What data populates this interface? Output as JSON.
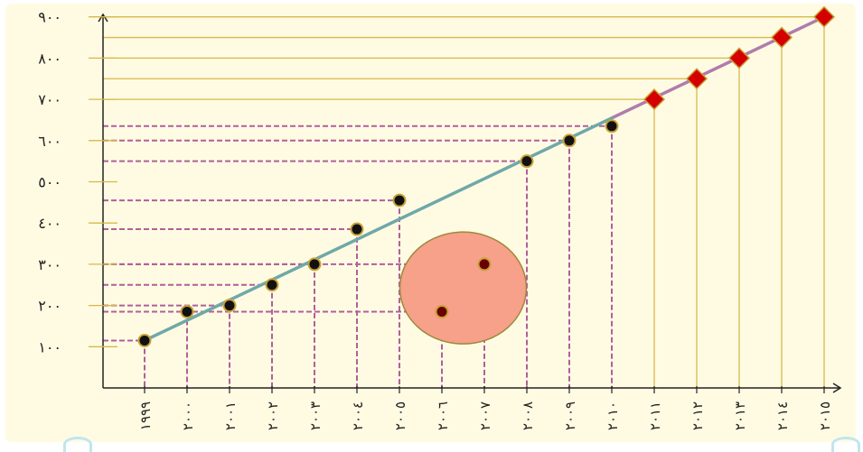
{
  "chart_data": {
    "type": "scatter",
    "title": "",
    "xlabel": "",
    "ylabel": "",
    "y_ticks": [
      "١٠٠",
      "٢٠٠",
      "٣٠٠",
      "٤٠٠",
      "٥٠٠",
      "٦٠٠",
      "٧٠٠",
      "٨٠٠",
      "٩٠٠"
    ],
    "x_labels": [
      "١٩٩٩",
      "٢٠٠٠",
      "٢٠٠١",
      "٢٠٠٢",
      "٢٠٠٣",
      "٢٠٠٤",
      "٢٠٠٥",
      "٢٠٠٦",
      "٢٠٠٧",
      "٢٠٠٨",
      "٢٠٠٩",
      "٢٠١٠",
      "٢٠١١",
      "٢٠١٢",
      "٢٠١٣",
      "٢٠١٤",
      "٢٠١٥"
    ],
    "ylim": [
      0,
      950
    ],
    "trend_line": {
      "x": [
        1999,
        2015
      ],
      "y": [
        115,
        900
      ]
    },
    "series": [
      {
        "marker": "circle",
        "color": "#111111",
        "points": [
          {
            "x": 1999,
            "y": 115
          },
          {
            "x": 2000,
            "y": 185
          },
          {
            "x": 2001,
            "y": 200
          },
          {
            "x": 2002,
            "y": 250
          },
          {
            "x": 2003,
            "y": 300
          },
          {
            "x": 2004,
            "y": 385
          },
          {
            "x": 2005,
            "y": 455
          },
          {
            "x": 2008,
            "y": 550
          },
          {
            "x": 2009,
            "y": 600
          },
          {
            "x": 2010,
            "y": 635
          }
        ]
      },
      {
        "marker": "circle",
        "color": "#6a0000",
        "highlighted": true,
        "points": [
          {
            "x": 2006,
            "y": 185
          },
          {
            "x": 2007,
            "y": 300
          }
        ]
      },
      {
        "marker": "diamond",
        "color": "#d40000",
        "points": [
          {
            "x": 2011,
            "y": 700
          },
          {
            "x": 2012,
            "y": 750
          },
          {
            "x": 2013,
            "y": 800
          },
          {
            "x": 2014,
            "y": 850
          },
          {
            "x": 2015,
            "y": 900
          }
        ]
      }
    ],
    "colors": {
      "background": "#fffbe3",
      "axis": "#222222",
      "guide_gold": "#d8b84a",
      "guide_dashed": "#b0609a",
      "trend": "#6fa8a8",
      "trend_extension": "#b07cab",
      "highlight_fill": "#f7a08a",
      "highlight_stroke": "#9a8a3a"
    }
  }
}
